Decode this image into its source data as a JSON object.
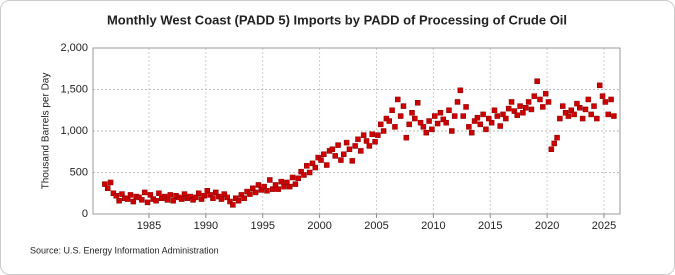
{
  "chart_data": {
    "type": "scatter",
    "title": "Monthly West Coast (PADD 5) Imports by PADD of Processing of Crude Oil",
    "y_label": "Thousand Barrels per Day",
    "source": "Source: U.S. Energy Information Administration",
    "color": "#cc0000",
    "grid": true,
    "xlim": [
      1980.08,
      2026.41
    ],
    "xticks": [
      1985,
      1990,
      1995,
      2000,
      2005,
      2010,
      2015,
      2020,
      2025
    ],
    "ylim": [
      0,
      2000
    ],
    "yticks": [
      0,
      500,
      {
        "value": 1000,
        "label": "1,000"
      },
      {
        "value": 1500,
        "label": "1,500"
      },
      {
        "value": 2000,
        "label": "2,000"
      }
    ],
    "x": [
      1981.125,
      1981.375,
      1981.625,
      1981.875,
      1982.125,
      1982.375,
      1982.625,
      1982.875,
      1983.125,
      1983.375,
      1983.625,
      1983.875,
      1984.125,
      1984.375,
      1984.625,
      1984.875,
      1985.125,
      1985.375,
      1985.625,
      1985.875,
      1986.125,
      1986.375,
      1986.625,
      1986.875,
      1987.125,
      1987.375,
      1987.625,
      1987.875,
      1988.125,
      1988.375,
      1988.625,
      1988.875,
      1989.125,
      1989.375,
      1989.625,
      1989.875,
      1990.125,
      1990.375,
      1990.625,
      1990.875,
      1991.125,
      1991.375,
      1991.625,
      1991.875,
      1992.125,
      1992.375,
      1992.625,
      1992.875,
      1993.125,
      1993.375,
      1993.625,
      1993.875,
      1994.125,
      1994.375,
      1994.625,
      1994.875,
      1995.125,
      1995.375,
      1995.625,
      1995.875,
      1996.125,
      1996.375,
      1996.625,
      1996.875,
      1997.125,
      1997.375,
      1997.625,
      1997.875,
      1998.125,
      1998.375,
      1998.625,
      1998.875,
      1999.125,
      1999.375,
      1999.625,
      1999.875,
      2000.125,
      2000.375,
      2000.625,
      2000.875,
      2001.125,
      2001.375,
      2001.625,
      2001.875,
      2002.125,
      2002.375,
      2002.625,
      2002.875,
      2003.125,
      2003.375,
      2003.625,
      2003.875,
      2004.125,
      2004.375,
      2004.625,
      2004.875,
      2005.125,
      2005.375,
      2005.625,
      2005.875,
      2006.125,
      2006.375,
      2006.625,
      2006.875,
      2007.125,
      2007.375,
      2007.625,
      2007.875,
      2008.125,
      2008.375,
      2008.625,
      2008.875,
      2009.125,
      2009.375,
      2009.625,
      2009.875,
      2010.125,
      2010.375,
      2010.625,
      2010.875,
      2011.125,
      2011.375,
      2011.625,
      2011.875,
      2012.125,
      2012.375,
      2012.625,
      2012.875,
      2013.125,
      2013.375,
      2013.625,
      2013.875,
      2014.125,
      2014.375,
      2014.625,
      2014.875,
      2015.125,
      2015.375,
      2015.625,
      2015.875,
      2016.125,
      2016.375,
      2016.625,
      2016.875,
      2017.125,
      2017.375,
      2017.625,
      2017.875,
      2018.125,
      2018.375,
      2018.625,
      2018.875,
      2019.125,
      2019.375,
      2019.625,
      2019.875,
      2020.125,
      2020.375,
      2020.625,
      2020.875,
      2021.125,
      2021.375,
      2021.625,
      2021.875,
      2022.125,
      2022.375,
      2022.625,
      2022.875,
      2023.125,
      2023.375,
      2023.625,
      2023.875,
      2024.125,
      2024.375,
      2024.625,
      2024.875,
      2025.125,
      2025.375,
      2025.625,
      2025.875
    ],
    "values": [
      360,
      310,
      380,
      250,
      220,
      160,
      240,
      190,
      180,
      230,
      150,
      210,
      200,
      170,
      260,
      140,
      230,
      180,
      160,
      250,
      190,
      210,
      170,
      230,
      160,
      220,
      200,
      180,
      240,
      190,
      210,
      170,
      200,
      250,
      180,
      220,
      280,
      230,
      190,
      260,
      210,
      180,
      240,
      200,
      150,
      110,
      190,
      160,
      230,
      190,
      270,
      240,
      310,
      260,
      350,
      290,
      330,
      280,
      410,
      300,
      350,
      300,
      390,
      330,
      380,
      330,
      440,
      360,
      430,
      510,
      470,
      580,
      500,
      610,
      560,
      680,
      650,
      720,
      590,
      760,
      780,
      700,
      830,
      650,
      720,
      860,
      780,
      640,
      820,
      900,
      760,
      950,
      880,
      820,
      960,
      870,
      950,
      1080,
      1000,
      1150,
      1120,
      1250,
      1050,
      1380,
      1180,
      1300,
      920,
      1080,
      1220,
      1150,
      1340,
      1100,
      1050,
      980,
      1120,
      1020,
      1180,
      1090,
      1220,
      1140,
      1100,
      1250,
      1000,
      1180,
      1350,
      1490,
      1180,
      1290,
      1050,
      980,
      1120,
      1160,
      1080,
      1200,
      1020,
      1150,
      1100,
      1250,
      1180,
      1060,
      1200,
      1150,
      1270,
      1350,
      1240,
      1190,
      1300,
      1220,
      1280,
      1350,
      1260,
      1420,
      1600,
      1380,
      1290,
      1450,
      1350,
      780,
      850,
      920,
      1150,
      1300,
      1220,
      1180,
      1250,
      1200,
      1330,
      1280,
      1150,
      1260,
      1380,
      1200,
      1300,
      1150,
      1550,
      1420,
      1350,
      1200,
      1380,
      1180
    ]
  }
}
